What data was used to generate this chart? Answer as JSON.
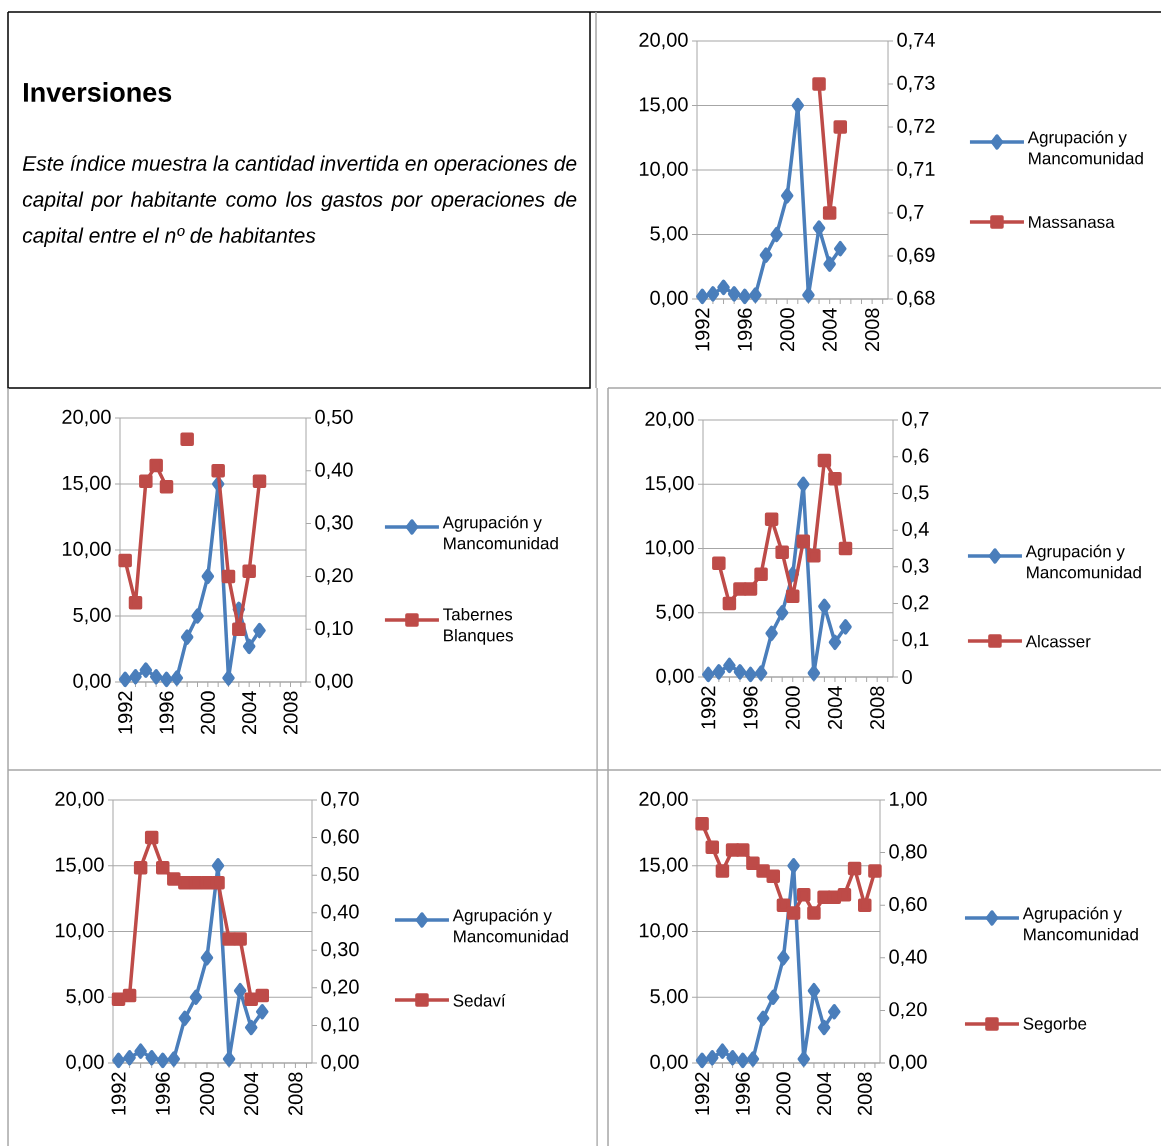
{
  "chart_data": [
    {
      "type": "other",
      "title": "Inversiones",
      "subtitle": "Este índice muestra la cantidad invertida en operaciones de capital por habitante como los gastos por operaciones de capital entre el nº de habitantes"
    },
    {
      "type": "line",
      "categories": [
        "1992",
        null,
        null,
        null,
        "1996",
        null,
        null,
        null,
        "2000",
        null,
        null,
        null,
        "2004",
        null,
        null,
        null,
        "2008",
        null
      ],
      "ylim": [
        0,
        20
      ],
      "yticks": [
        {
          "value": 0,
          "label": "0,00"
        },
        {
          "value": 5,
          "label": "5,00"
        },
        {
          "value": 10,
          "label": "10,00"
        },
        {
          "value": 15,
          "label": "15,00"
        },
        {
          "value": 20,
          "label": "20,00"
        }
      ],
      "y2lim": [
        0.68,
        0.74
      ],
      "y2ticks": [
        {
          "value": 0.68,
          "label": "0,68"
        },
        {
          "value": 0.69,
          "label": "0,69"
        },
        {
          "value": 0.7,
          "label": "0,7"
        },
        {
          "value": 0.71,
          "label": "0,71"
        },
        {
          "value": 0.72,
          "label": "0,72"
        },
        {
          "value": 0.73,
          "label": "0,73"
        },
        {
          "value": 0.74,
          "label": "0,74"
        }
      ],
      "grid": "y",
      "legend": "right",
      "series": [
        {
          "name": "Agrupación y Mancomunidad",
          "color": "#4a7ebb",
          "marker": "diamond",
          "values": [
            0.2,
            0.4,
            0.9,
            0.4,
            0.2,
            0.3,
            3.4,
            5.0,
            8.0,
            15.0,
            0.3,
            5.5,
            2.7,
            3.9,
            null,
            null,
            null,
            null
          ]
        },
        {
          "name": "Massanasa",
          "color": "#be4b48",
          "marker": "square",
          "axis": "y2",
          "values": [
            null,
            null,
            null,
            null,
            null,
            null,
            null,
            null,
            null,
            null,
            null,
            0.73,
            0.7,
            0.72,
            null,
            null,
            null,
            null
          ]
        }
      ]
    },
    {
      "type": "line",
      "categories": [
        "1992",
        null,
        null,
        null,
        "1996",
        null,
        null,
        null,
        "2000",
        null,
        null,
        null,
        "2004",
        null,
        null,
        null,
        "2008",
        null
      ],
      "ylim": [
        0,
        20
      ],
      "yticks": [
        {
          "value": 0,
          "label": "0,00"
        },
        {
          "value": 5,
          "label": "5,00"
        },
        {
          "value": 10,
          "label": "10,00"
        },
        {
          "value": 15,
          "label": "15,00"
        },
        {
          "value": 20,
          "label": "20,00"
        }
      ],
      "y2lim": [
        0,
        0.5
      ],
      "y2ticks": [
        {
          "value": 0,
          "label": "0,00"
        },
        {
          "value": 0.1,
          "label": "0,10"
        },
        {
          "value": 0.2,
          "label": "0,20"
        },
        {
          "value": 0.3,
          "label": "0,30"
        },
        {
          "value": 0.4,
          "label": "0,40"
        },
        {
          "value": 0.5,
          "label": "0,50"
        }
      ],
      "grid": "y",
      "legend": "right",
      "series": [
        {
          "name": "Agrupación y Mancomunidad",
          "color": "#4a7ebb",
          "marker": "diamond",
          "values": [
            0.2,
            0.4,
            0.9,
            0.4,
            0.2,
            0.3,
            3.4,
            5.0,
            8.0,
            15.0,
            0.3,
            5.5,
            2.7,
            3.9,
            null,
            null,
            null,
            null
          ]
        },
        {
          "name": "Tabernes Blanques",
          "color": "#be4b48",
          "marker": "square",
          "axis": "y2",
          "values": [
            0.23,
            0.15,
            0.38,
            0.41,
            0.37,
            null,
            0.46,
            null,
            null,
            0.4,
            0.2,
            0.1,
            0.21,
            0.38,
            null,
            null,
            null,
            null
          ]
        }
      ]
    },
    {
      "type": "line",
      "categories": [
        "1992",
        null,
        null,
        null,
        "1996",
        null,
        null,
        null,
        "2000",
        null,
        null,
        null,
        "2004",
        null,
        null,
        null,
        "2008",
        null
      ],
      "ylim": [
        0,
        20
      ],
      "yticks": [
        {
          "value": 0,
          "label": "0,00"
        },
        {
          "value": 5,
          "label": "5,00"
        },
        {
          "value": 10,
          "label": "10,00"
        },
        {
          "value": 15,
          "label": "15,00"
        },
        {
          "value": 20,
          "label": "20,00"
        }
      ],
      "y2lim": [
        0,
        0.7
      ],
      "y2ticks": [
        {
          "value": 0,
          "label": "0"
        },
        {
          "value": 0.1,
          "label": "0,1"
        },
        {
          "value": 0.2,
          "label": "0,2"
        },
        {
          "value": 0.3,
          "label": "0,3"
        },
        {
          "value": 0.4,
          "label": "0,4"
        },
        {
          "value": 0.5,
          "label": "0,5"
        },
        {
          "value": 0.6,
          "label": "0,6"
        },
        {
          "value": 0.7,
          "label": "0,7"
        }
      ],
      "grid": "y",
      "legend": "right",
      "series": [
        {
          "name": "Agrupación y Mancomunidad",
          "color": "#4a7ebb",
          "marker": "diamond",
          "values": [
            0.2,
            0.4,
            0.9,
            0.4,
            0.2,
            0.3,
            3.4,
            5.0,
            8.0,
            15.0,
            0.3,
            5.5,
            2.7,
            3.9,
            null,
            null,
            null,
            null
          ]
        },
        {
          "name": "Alcasser",
          "color": "#be4b48",
          "marker": "square",
          "axis": "y2",
          "values": [
            null,
            0.31,
            0.2,
            0.24,
            0.24,
            0.28,
            0.43,
            0.34,
            0.22,
            0.37,
            0.33,
            0.59,
            0.54,
            0.35,
            null,
            null,
            null,
            null
          ]
        }
      ]
    },
    {
      "type": "line",
      "categories": [
        "1992",
        null,
        null,
        null,
        "1996",
        null,
        null,
        null,
        "2000",
        null,
        null,
        null,
        "2004",
        null,
        null,
        null,
        "2008",
        null
      ],
      "ylim": [
        0,
        20
      ],
      "yticks": [
        {
          "value": 0,
          "label": "0,00"
        },
        {
          "value": 5,
          "label": "5,00"
        },
        {
          "value": 10,
          "label": "10,00"
        },
        {
          "value": 15,
          "label": "15,00"
        },
        {
          "value": 20,
          "label": "20,00"
        }
      ],
      "y2lim": [
        0,
        0.7
      ],
      "y2ticks": [
        {
          "value": 0,
          "label": "0,00"
        },
        {
          "value": 0.1,
          "label": "0,10"
        },
        {
          "value": 0.2,
          "label": "0,20"
        },
        {
          "value": 0.3,
          "label": "0,30"
        },
        {
          "value": 0.4,
          "label": "0,40"
        },
        {
          "value": 0.5,
          "label": "0,50"
        },
        {
          "value": 0.6,
          "label": "0,60"
        },
        {
          "value": 0.7,
          "label": "0,70"
        }
      ],
      "grid": "y",
      "legend": "right",
      "series": [
        {
          "name": "Agrupación y Mancomunidad",
          "color": "#4a7ebb",
          "marker": "diamond",
          "values": [
            0.2,
            0.4,
            0.9,
            0.4,
            0.2,
            0.3,
            3.4,
            5.0,
            8.0,
            15.0,
            0.3,
            5.5,
            2.7,
            3.9,
            null,
            null,
            null,
            null
          ]
        },
        {
          "name": "Sedaví",
          "color": "#be4b48",
          "marker": "square",
          "axis": "y2",
          "values": [
            0.17,
            0.18,
            0.52,
            0.6,
            0.52,
            0.49,
            0.48,
            0.48,
            0.48,
            0.48,
            0.33,
            0.33,
            0.17,
            0.18,
            null,
            null,
            null,
            null
          ]
        }
      ]
    },
    {
      "type": "line",
      "categories": [
        "1992",
        null,
        null,
        null,
        "1996",
        null,
        null,
        null,
        "2000",
        null,
        null,
        null,
        "2004",
        null,
        null,
        null,
        "2008",
        null
      ],
      "ylim": [
        0,
        20
      ],
      "yticks": [
        {
          "value": 0,
          "label": "0,00"
        },
        {
          "value": 5,
          "label": "5,00"
        },
        {
          "value": 10,
          "label": "10,00"
        },
        {
          "value": 15,
          "label": "15,00"
        },
        {
          "value": 20,
          "label": "20,00"
        }
      ],
      "y2lim": [
        0,
        1
      ],
      "y2ticks": [
        {
          "value": 0,
          "label": "0,00"
        },
        {
          "value": 0.2,
          "label": "0,20"
        },
        {
          "value": 0.4,
          "label": "0,40"
        },
        {
          "value": 0.6,
          "label": "0,60"
        },
        {
          "value": 0.8,
          "label": "0,80"
        },
        {
          "value": 1,
          "label": "1,00"
        }
      ],
      "grid": "y",
      "legend": "right",
      "series": [
        {
          "name": "Agrupación y Mancomunidad",
          "color": "#4a7ebb",
          "marker": "diamond",
          "values": [
            0.2,
            0.4,
            0.9,
            0.4,
            0.2,
            0.3,
            3.4,
            5.0,
            8.0,
            15.0,
            0.3,
            5.5,
            2.7,
            3.9,
            null,
            null,
            null,
            null
          ]
        },
        {
          "name": "Segorbe",
          "color": "#be4b48",
          "marker": "square",
          "axis": "y2",
          "values": [
            0.91,
            0.82,
            0.73,
            0.81,
            0.81,
            0.76,
            0.73,
            0.71,
            0.6,
            0.57,
            0.64,
            0.57,
            0.63,
            0.63,
            0.64,
            0.74,
            0.6,
            0.73
          ]
        }
      ]
    }
  ]
}
